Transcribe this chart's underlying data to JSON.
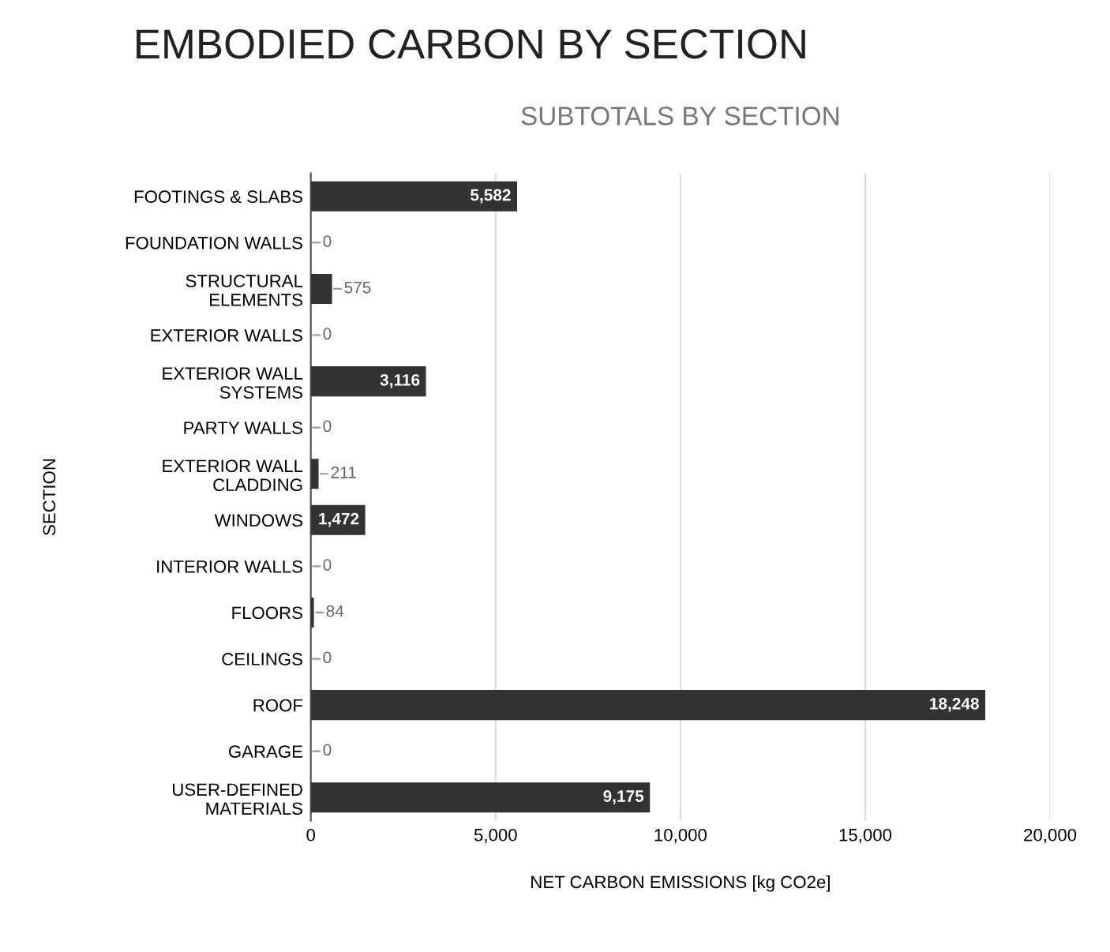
{
  "chart_data": {
    "type": "bar",
    "orientation": "horizontal",
    "title": "EMBODIED CARBON BY SECTION",
    "subtitle": "SUBTOTALS BY SECTION",
    "xlabel": "NET CARBON EMISSIONS [kg CO2e]",
    "ylabel": "SECTION",
    "categories": [
      "FOOTINGS & SLABS",
      "FOUNDATION WALLS",
      "STRUCTURAL\nELEMENTS",
      "EXTERIOR WALLS",
      "EXTERIOR WALL\nSYSTEMS",
      "PARTY WALLS",
      "EXTERIOR WALL\nCLADDING",
      "WINDOWS",
      "INTERIOR WALLS",
      "FLOORS",
      "CEILINGS",
      "ROOF",
      "GARAGE",
      "USER-DEFINED\nMATERIALS"
    ],
    "values": [
      5582,
      0,
      575,
      0,
      3116,
      0,
      211,
      1472,
      0,
      84,
      0,
      18248,
      0,
      9175
    ],
    "value_labels": [
      "5,582",
      "0",
      "575",
      "0",
      "3,116",
      "0",
      "211",
      "1,472",
      "0",
      "84",
      "0",
      "18,248",
      "0",
      "9,175"
    ],
    "color": "#333333",
    "xlim": [
      0,
      20000
    ],
    "xticks": [
      0,
      {
        "value": 5000,
        "label": "5,000"
      },
      {
        "value": 10000,
        "label": "10,000"
      },
      {
        "value": 15000,
        "label": "15,000"
      },
      {
        "value": 20000,
        "label": "20,000"
      }
    ],
    "grid": "x"
  }
}
